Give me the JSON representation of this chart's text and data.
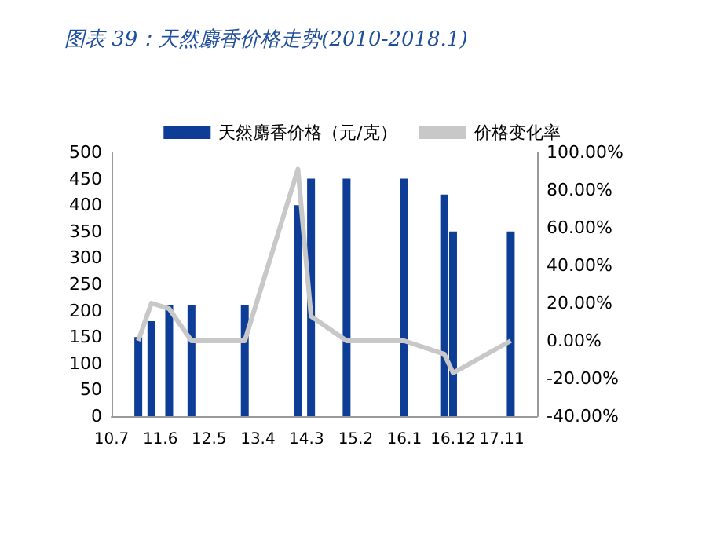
{
  "chart_data": {
    "type": "bar",
    "title": "图表 39：天然麝香价格走势(2010-2018.1)",
    "x": [
      "2011-01",
      "2011-04",
      "2011-08",
      "2012-01",
      "2013-01",
      "2014-01",
      "2014-04",
      "2014-12",
      "2016-01",
      "2016-10",
      "2016-12",
      "2018-01"
    ],
    "series": [
      {
        "name": "天然麝香价格（元/克）",
        "color": "#0d3d96",
        "values": [
          150,
          180,
          210,
          210,
          210,
          400,
          450,
          450,
          450,
          420,
          350,
          350
        ]
      },
      {
        "name": "价格变化率",
        "type": "line",
        "axis": "y2",
        "color": "#c8c8c8",
        "marker": "none",
        "values": [
          0,
          20,
          17,
          0,
          0,
          91,
          13,
          0,
          0,
          -7,
          -17,
          0
        ]
      }
    ],
    "xlim": [
      "2010-07",
      "2018-07"
    ],
    "xticks": [
      {
        "value": "2010-07",
        "label": "10.7"
      },
      {
        "value": "2011-06",
        "label": "11.6"
      },
      {
        "value": "2012-05",
        "label": "12.5"
      },
      {
        "value": "2013-04",
        "label": "13.4"
      },
      {
        "value": "2014-03",
        "label": "14.3"
      },
      {
        "value": "2015-02",
        "label": "15.2"
      },
      {
        "value": "2016-01",
        "label": "16.1"
      },
      {
        "value": "2016-12",
        "label": "16.12"
      },
      {
        "value": "2017-11",
        "label": "17.11"
      }
    ],
    "ylim": [
      0,
      500
    ],
    "yticks": [
      0,
      50,
      100,
      150,
      200,
      250,
      300,
      350,
      400,
      450,
      500
    ],
    "y2lim": [
      -40,
      100
    ],
    "y2ticks": [
      {
        "value": -40,
        "label": "-40.00%"
      },
      {
        "value": -20,
        "label": "-20.00%"
      },
      {
        "value": 0,
        "label": "0.00%"
      },
      {
        "value": 20,
        "label": "20.00%"
      },
      {
        "value": 40,
        "label": "40.00%"
      },
      {
        "value": 60,
        "label": "60.00%"
      },
      {
        "value": 80,
        "label": "80.00%"
      },
      {
        "value": 100,
        "label": "100.00%"
      }
    ],
    "grid": false,
    "legend": "top"
  }
}
